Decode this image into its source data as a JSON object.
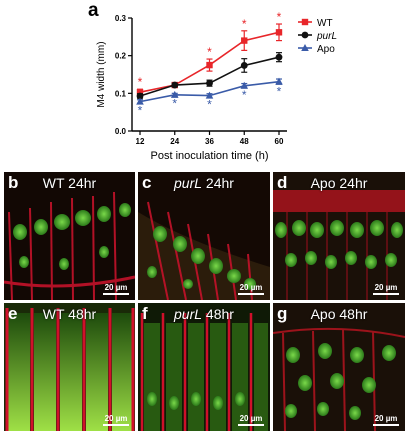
{
  "panel_a_letter": "a",
  "chart_data": {
    "type": "line",
    "title": "",
    "xlabel": "Post inoculation time (h)",
    "ylabel": "M4 width (mm)",
    "x": [
      12,
      24,
      36,
      48,
      60
    ],
    "xticks": [
      "12",
      "24",
      "36",
      "48",
      "60"
    ],
    "ylim": [
      0.0,
      0.3
    ],
    "yticks": [
      "0.0",
      "0.1",
      "0.2",
      "0.3"
    ],
    "legend_position": "top-right",
    "series": [
      {
        "name": "WT",
        "color": "#e8262a",
        "marker": "square",
        "values": [
          0.103,
          0.122,
          0.175,
          0.24,
          0.262
        ],
        "errors": [
          0.008,
          0.006,
          0.016,
          0.026,
          0.022
        ],
        "significance": [
          "*",
          "",
          "*",
          "*",
          "*"
        ]
      },
      {
        "name": "purL",
        "color": "#111111",
        "marker": "circle",
        "values": [
          0.093,
          0.122,
          0.127,
          0.174,
          0.196
        ],
        "errors": [
          0.006,
          0.005,
          0.008,
          0.018,
          0.012
        ],
        "significance": [
          "",
          "",
          "",
          "",
          ""
        ]
      },
      {
        "name": "Apo",
        "color": "#3a5ba8",
        "marker": "triangle",
        "values": [
          0.078,
          0.096,
          0.094,
          0.12,
          0.131
        ],
        "errors": [
          0.005,
          0.004,
          0.005,
          0.006,
          0.007
        ],
        "significance": [
          "*",
          "*",
          "*",
          "*",
          "*"
        ]
      }
    ]
  },
  "micrographs": [
    {
      "letter": "b",
      "title": "WT 24hr",
      "italic_prefix": "",
      "scale": "20 µm"
    },
    {
      "letter": "c",
      "title": " 24hr",
      "italic_prefix": "purL",
      "scale": "20 µm"
    },
    {
      "letter": "d",
      "title": "Apo 24hr",
      "italic_prefix": "",
      "scale": "20 µm"
    },
    {
      "letter": "e",
      "title": "WT 48hr",
      "italic_prefix": "",
      "scale": "20 µm"
    },
    {
      "letter": "f",
      "title": " 48hr",
      "italic_prefix": "purL",
      "scale": "20 µm"
    },
    {
      "letter": "g",
      "title": "Apo 48hr",
      "italic_prefix": "",
      "scale": "20 µm"
    }
  ]
}
